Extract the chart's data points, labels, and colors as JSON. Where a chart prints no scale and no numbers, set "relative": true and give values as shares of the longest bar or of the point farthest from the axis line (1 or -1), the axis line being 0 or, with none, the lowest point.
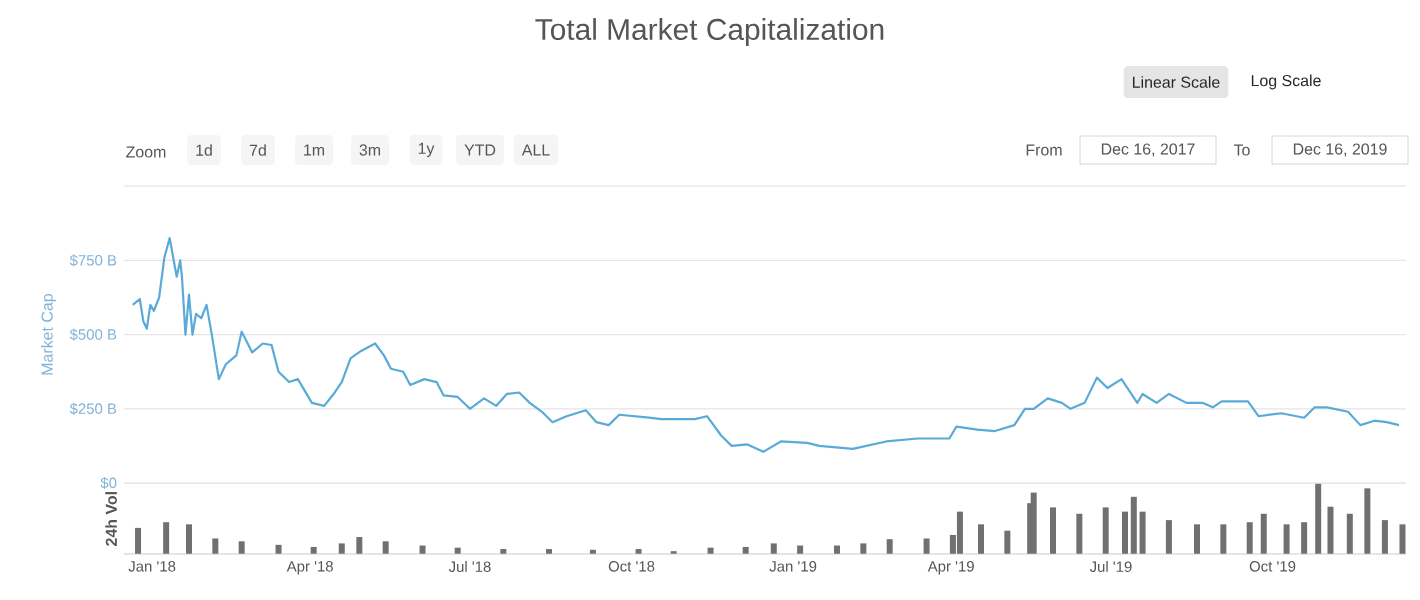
{
  "chart_data": [
    {
      "type": "line",
      "title": "Total Market Capitalization",
      "ylabel": "Market Cap",
      "annotations": [
        "Linear Scale",
        "Log Scale",
        "Zoom",
        "1d",
        "7d",
        "1m",
        "3m",
        "1y",
        "YTD",
        "ALL",
        "From",
        "Dec 16, 2017",
        "To",
        "Dec 16, 2019"
      ],
      "x": [
        "2017-12-21",
        "2017-12-25",
        "2017-12-27",
        "2017-12-29",
        "2017-12-31",
        "2018-01-02",
        "2018-01-05",
        "2018-01-08",
        "2018-01-11",
        "2018-01-13",
        "2018-01-15",
        "2018-01-17",
        "2018-01-18",
        "2018-01-20",
        "2018-01-22",
        "2018-01-24",
        "2018-01-26",
        "2018-01-29",
        "2018-02-01",
        "2018-02-04",
        "2018-02-08",
        "2018-02-12",
        "2018-02-18",
        "2018-02-21",
        "2018-02-27",
        "2018-03-05",
        "2018-03-10",
        "2018-03-14",
        "2018-03-20",
        "2018-03-25",
        "2018-04-02",
        "2018-04-09",
        "2018-04-15",
        "2018-04-19",
        "2018-04-24",
        "2018-04-30",
        "2018-05-08",
        "2018-05-13",
        "2018-05-17",
        "2018-05-24",
        "2018-05-28",
        "2018-06-05",
        "2018-06-12",
        "2018-06-16",
        "2018-06-24",
        "2018-07-01",
        "2018-07-09",
        "2018-07-16",
        "2018-07-22",
        "2018-07-29",
        "2018-08-04",
        "2018-08-11",
        "2018-08-17",
        "2018-08-25",
        "2018-09-05",
        "2018-09-11",
        "2018-09-18",
        "2018-09-24",
        "2018-10-11",
        "2018-10-18",
        "2018-11-06",
        "2018-11-13",
        "2018-11-21",
        "2018-11-27",
        "2018-12-06",
        "2018-12-15",
        "2018-12-25",
        "2019-01-09",
        "2019-01-16",
        "2019-02-04",
        "2019-02-23",
        "2019-03-13",
        "2019-03-31",
        "2019-04-04",
        "2019-04-16",
        "2019-04-26",
        "2019-05-07",
        "2019-05-13",
        "2019-05-18",
        "2019-05-26",
        "2019-06-03",
        "2019-06-08",
        "2019-06-16",
        "2019-06-23",
        "2019-06-29",
        "2019-07-07",
        "2019-07-16",
        "2019-07-19",
        "2019-07-27",
        "2019-08-03",
        "2019-08-13",
        "2019-08-22",
        "2019-08-28",
        "2019-09-02",
        "2019-09-17",
        "2019-09-23",
        "2019-10-06",
        "2019-10-19",
        "2019-10-25",
        "2019-11-01",
        "2019-11-13",
        "2019-11-20",
        "2019-11-28",
        "2019-12-05",
        "2019-12-12"
      ],
      "series": [
        {
          "color": "#5aaad8",
          "values": [
            600,
            620,
            545,
            520,
            600,
            580,
            625,
            760,
            825,
            760,
            695,
            750,
            695,
            500,
            635,
            500,
            570,
            555,
            600,
            500,
            350,
            400,
            430,
            510,
            440,
            470,
            465,
            375,
            340,
            350,
            270,
            260,
            305,
            340,
            420,
            445,
            470,
            430,
            385,
            375,
            330,
            350,
            340,
            295,
            290,
            250,
            285,
            260,
            300,
            305,
            270,
            240,
            205,
            225,
            245,
            205,
            195,
            230,
            220,
            215,
            215,
            225,
            160,
            125,
            130,
            105,
            140,
            135,
            125,
            115,
            140,
            150,
            150,
            190,
            180,
            175,
            195,
            250,
            250,
            285,
            270,
            250,
            270,
            355,
            320,
            350,
            270,
            300,
            270,
            300,
            270,
            270,
            255,
            275,
            275,
            225,
            235,
            220,
            255,
            255,
            240,
            195,
            210,
            205,
            195
          ]
        }
      ],
      "xlim": [
        "2017-12-16",
        "2019-12-16"
      ],
      "ylim": [
        0,
        1000
      ],
      "yticks": [
        {
          "value": 0,
          "label": "$0"
        },
        {
          "value": 250,
          "label": "$250 B"
        },
        {
          "value": 500,
          "label": "$500 B"
        },
        {
          "value": 750,
          "label": "$750 B"
        },
        {
          "value": 1000,
          "label": null
        }
      ],
      "grid": "y",
      "tick_labels": "y"
    },
    {
      "type": "bar",
      "ylabel": "24h Vol",
      "relative": true,
      "tick_labels": "x",
      "x": [
        "2017-12-24",
        "2018-01-09",
        "2018-01-22",
        "2018-02-06",
        "2018-02-21",
        "2018-03-14",
        "2018-04-03",
        "2018-04-19",
        "2018-04-29",
        "2018-05-14",
        "2018-06-04",
        "2018-06-24",
        "2018-07-20",
        "2018-08-15",
        "2018-09-09",
        "2018-10-05",
        "2018-10-25",
        "2018-11-15",
        "2018-12-05",
        "2018-12-21",
        "2019-01-05",
        "2019-01-26",
        "2019-02-10",
        "2019-02-25",
        "2019-03-18",
        "2019-04-02",
        "2019-04-06",
        "2019-04-18",
        "2019-05-03",
        "2019-05-16",
        "2019-05-18",
        "2019-05-29",
        "2019-06-13",
        "2019-06-28",
        "2019-07-09",
        "2019-07-14",
        "2019-07-19",
        "2019-08-03",
        "2019-08-19",
        "2019-09-03",
        "2019-09-18",
        "2019-09-26",
        "2019-10-09",
        "2019-10-19",
        "2019-10-27",
        "2019-11-03",
        "2019-11-14",
        "2019-11-24",
        "2019-12-04",
        "2019-12-14"
      ],
      "series": [
        {
          "color": "#707070",
          "values": [
            0.37,
            0.45,
            0.42,
            0.22,
            0.18,
            0.13,
            0.1,
            0.15,
            0.24,
            0.18,
            0.12,
            0.09,
            0.07,
            0.07,
            0.06,
            0.07,
            0.04,
            0.09,
            0.1,
            0.15,
            0.12,
            0.12,
            0.15,
            0.21,
            0.22,
            0.27,
            0.6,
            0.42,
            0.33,
            0.72,
            0.87,
            0.66,
            0.57,
            0.66,
            0.6,
            0.81,
            0.6,
            0.48,
            0.42,
            0.42,
            0.45,
            0.57,
            0.42,
            0.45,
            1,
            0.67,
            0.57,
            0.93,
            0.48,
            0.42
          ]
        }
      ],
      "xlim": [
        "2017-12-16",
        "2019-12-16"
      ],
      "xticks": [
        {
          "value": "2018-01-01",
          "label": "Jan '18"
        },
        {
          "value": "2018-04-01",
          "label": "Apr '18"
        },
        {
          "value": "2018-07-01",
          "label": "Jul '18"
        },
        {
          "value": "2018-10-01",
          "label": "Oct '18"
        },
        {
          "value": "2019-01-01",
          "label": "Jan '19"
        },
        {
          "value": "2019-04-01",
          "label": "Apr '19"
        },
        {
          "value": "2019-07-01",
          "label": "Jul '19"
        },
        {
          "value": "2019-10-01",
          "label": "Oct '19"
        }
      ]
    }
  ]
}
